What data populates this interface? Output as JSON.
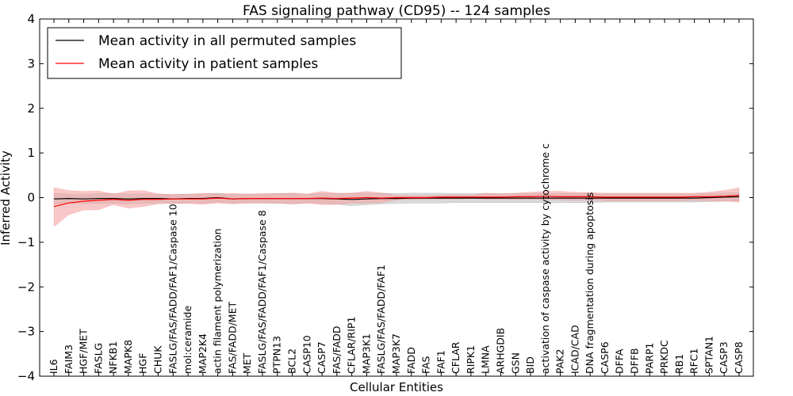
{
  "chart_data": {
    "type": "line",
    "title": "FAS signaling pathway (CD95) -- 124 samples",
    "xlabel": "Cellular Entities",
    "ylabel": "Inferred Activity",
    "ylim": [
      -4,
      4
    ],
    "yticks": [
      "−4",
      "−3",
      "−2",
      "−1",
      "0",
      "1",
      "2",
      "3",
      "4"
    ],
    "grid": false,
    "legend_position": "top-left",
    "categories": [
      "IL6",
      "FAIM3",
      "HGF/MET",
      "FASLG",
      "NFKB1",
      "MAPK8",
      "HGF",
      "CHUK",
      "FASLG/FAS/FADD/FAF1/Caspase 10",
      "mol:ceramide",
      "MAP2K4",
      "actin filament polymerization",
      "FAS/FADD/MET",
      "MET",
      "FASLG/FAS/FADD/FAF1/Caspase 8",
      "PTPN13",
      "BCL2",
      "CASP10",
      "CASP7",
      "FAS/FADD",
      "CFLAR/RIP1",
      "MAP3K1",
      "FASLG/FAS/FADD/FAF1",
      "MAP3K7",
      "FADD",
      "FAS",
      "FAF1",
      "CFLAR",
      "RIPK1",
      "LMNA",
      "ARHGDIB",
      "GSN",
      "BID",
      "activation of caspase activity by cytochrome c",
      "PAK2",
      "ICAD/CAD",
      "DNA fragmentation during apoptosis",
      "CASP6",
      "DFFA",
      "DFFB",
      "PARP1",
      "PRKDC",
      "RB1",
      "RFC1",
      "SPTAN1",
      "CASP3",
      "CASP8"
    ],
    "series": [
      {
        "name": "Mean activity in all permuted samples",
        "color": "#000000",
        "band_color": "#bbbbbb",
        "values": [
          -0.03,
          -0.02,
          -0.03,
          -0.02,
          -0.02,
          -0.03,
          -0.02,
          -0.02,
          -0.03,
          -0.02,
          -0.02,
          0.0,
          -0.03,
          -0.02,
          -0.02,
          -0.02,
          -0.02,
          -0.02,
          -0.02,
          -0.03,
          -0.04,
          -0.03,
          -0.02,
          -0.02,
          -0.01,
          -0.01,
          -0.01,
          -0.01,
          -0.01,
          -0.01,
          -0.01,
          -0.01,
          -0.01,
          -0.01,
          -0.01,
          -0.01,
          -0.01,
          -0.01,
          -0.01,
          -0.01,
          -0.01,
          -0.01,
          -0.01,
          -0.01,
          0.0,
          0.01,
          0.02
        ],
        "lower": [
          -0.15,
          -0.12,
          -0.13,
          -0.13,
          -0.13,
          -0.14,
          -0.13,
          -0.12,
          -0.13,
          -0.12,
          -0.12,
          -0.1,
          -0.13,
          -0.12,
          -0.12,
          -0.13,
          -0.14,
          -0.12,
          -0.13,
          -0.15,
          -0.18,
          -0.16,
          -0.14,
          -0.13,
          -0.12,
          -0.12,
          -0.12,
          -0.11,
          -0.11,
          -0.11,
          -0.11,
          -0.11,
          -0.11,
          -0.11,
          -0.11,
          -0.11,
          -0.11,
          -0.1,
          -0.1,
          -0.1,
          -0.1,
          -0.1,
          -0.1,
          -0.1,
          -0.09,
          -0.08,
          -0.07
        ],
        "upper": [
          0.09,
          0.08,
          0.07,
          0.09,
          0.09,
          0.08,
          0.09,
          0.08,
          0.07,
          0.08,
          0.08,
          0.1,
          0.07,
          0.08,
          0.08,
          0.09,
          0.1,
          0.08,
          0.09,
          0.09,
          0.1,
          0.1,
          0.1,
          0.09,
          0.1,
          0.1,
          0.1,
          0.09,
          0.09,
          0.09,
          0.09,
          0.09,
          0.09,
          0.09,
          0.09,
          0.09,
          0.09,
          0.08,
          0.08,
          0.08,
          0.08,
          0.08,
          0.08,
          0.08,
          0.09,
          0.1,
          0.11
        ]
      },
      {
        "name": "Mean activity in patient samples",
        "color": "#ff0000",
        "band_color": "#f4a3a3",
        "values": [
          -0.2,
          -0.12,
          -0.08,
          -0.06,
          -0.04,
          -0.06,
          -0.04,
          -0.04,
          -0.03,
          -0.03,
          -0.03,
          -0.01,
          -0.03,
          -0.02,
          -0.02,
          -0.02,
          -0.02,
          -0.02,
          -0.01,
          -0.02,
          -0.01,
          0.0,
          -0.01,
          0.0,
          0.0,
          0.0,
          0.01,
          0.01,
          0.01,
          0.01,
          0.01,
          0.02,
          0.02,
          0.03,
          0.02,
          0.02,
          0.02,
          0.01,
          0.01,
          0.01,
          0.01,
          0.01,
          0.01,
          0.02,
          0.02,
          0.03,
          0.05
        ],
        "lower": [
          -0.65,
          -0.38,
          -0.28,
          -0.27,
          -0.16,
          -0.24,
          -0.2,
          -0.14,
          -0.13,
          -0.13,
          -0.15,
          -0.12,
          -0.14,
          -0.12,
          -0.12,
          -0.12,
          -0.14,
          -0.12,
          -0.16,
          -0.15,
          -0.12,
          -0.12,
          -0.11,
          -0.05,
          -0.04,
          -0.03,
          -0.03,
          -0.03,
          -0.02,
          -0.03,
          -0.03,
          -0.04,
          -0.03,
          -0.04,
          -0.05,
          -0.06,
          -0.05,
          -0.07,
          -0.07,
          -0.07,
          -0.07,
          -0.07,
          -0.07,
          -0.06,
          -0.07,
          -0.08,
          -0.1
        ],
        "upper": [
          0.22,
          0.16,
          0.14,
          0.15,
          0.08,
          0.15,
          0.16,
          0.08,
          0.07,
          0.07,
          0.1,
          0.08,
          0.09,
          0.08,
          0.09,
          0.09,
          0.1,
          0.08,
          0.14,
          0.1,
          0.1,
          0.14,
          0.1,
          0.05,
          0.04,
          0.04,
          0.05,
          0.06,
          0.05,
          0.1,
          0.08,
          0.1,
          0.12,
          0.14,
          0.14,
          0.12,
          0.11,
          0.1,
          0.1,
          0.1,
          0.1,
          0.1,
          0.1,
          0.1,
          0.12,
          0.16,
          0.22
        ]
      }
    ]
  }
}
